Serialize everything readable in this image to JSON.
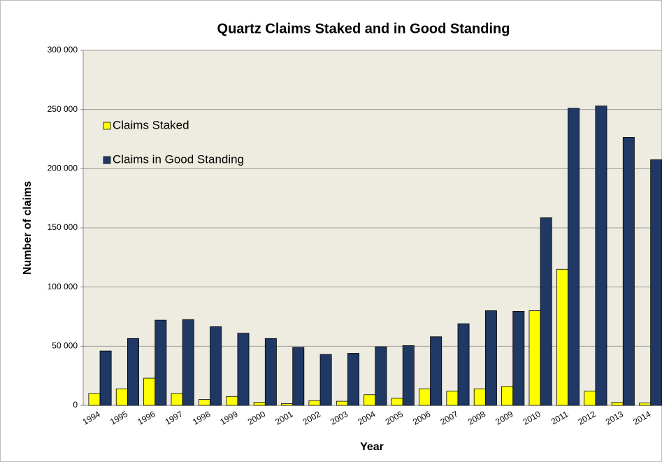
{
  "chart_data": {
    "type": "bar",
    "title": "Quartz Claims Staked and in Good Standing",
    "x_label": "Year",
    "y_label": "Number of claims",
    "categories": [
      "1994",
      "1995",
      "1996",
      "1997",
      "1998",
      "1999",
      "2000",
      "2001",
      "2002",
      "2003",
      "2004",
      "2005",
      "2006",
      "2007",
      "2008",
      "2009",
      "2010",
      "2011",
      "2012",
      "2013",
      "2014"
    ],
    "series": [
      {
        "name": "Claims Staked",
        "color": "#ffff00",
        "values": [
          10000,
          14000,
          23000,
          10000,
          5000,
          7500,
          2500,
          1500,
          4000,
          3500,
          9000,
          6000,
          14000,
          12000,
          14000,
          16000,
          80000,
          115000,
          12000,
          2500,
          2000
        ]
      },
      {
        "name": "Claims in Good Standing",
        "color": "#1f3864",
        "values": [
          46000,
          56500,
          72000,
          72500,
          66500,
          61000,
          56500,
          49000,
          43000,
          44000,
          49500,
          50500,
          58000,
          69000,
          80000,
          79500,
          158500,
          251000,
          253000,
          226500,
          207500
        ]
      }
    ],
    "ylim": [
      0,
      300000
    ],
    "yticks": [
      {
        "value": 0,
        "label": "0"
      },
      {
        "value": 50000,
        "label": "50 000"
      },
      {
        "value": 100000,
        "label": "100 000"
      },
      {
        "value": 150000,
        "label": "150 000"
      },
      {
        "value": 200000,
        "label": "200 000"
      },
      {
        "value": 250000,
        "label": "250 000"
      },
      {
        "value": 300000,
        "label": "300 000"
      }
    ],
    "grid": true,
    "legend": "upper left"
  }
}
